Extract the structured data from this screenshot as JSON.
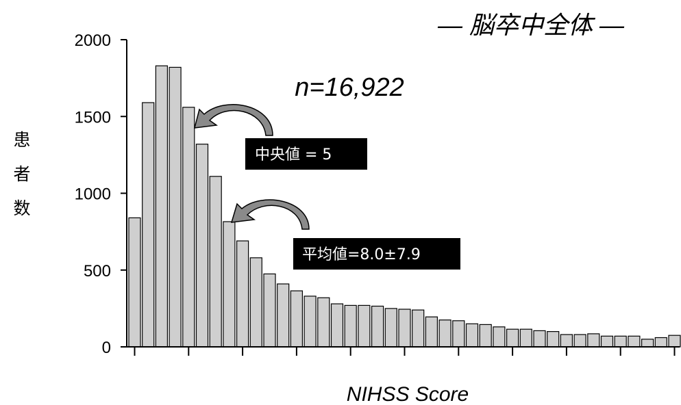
{
  "chart_data": {
    "type": "bar",
    "title": "― 脳卒中全体 ―",
    "n_label": "n=16,922",
    "xlabel": "NIHSS Score",
    "ylabel_chars": [
      "患",
      "者",
      "数"
    ],
    "ylim": [
      0,
      2000
    ],
    "yticks": [
      0,
      500,
      1000,
      1500,
      2000
    ],
    "grid": false,
    "legend": "none",
    "x": [
      0,
      1,
      2,
      3,
      4,
      5,
      6,
      7,
      8,
      9,
      10,
      11,
      12,
      13,
      14,
      15,
      16,
      17,
      18,
      19,
      20,
      21,
      22,
      23,
      24,
      25,
      26,
      27,
      28,
      29,
      30,
      31,
      32,
      33,
      34,
      35,
      36,
      37,
      38,
      39,
      40
    ],
    "values": [
      840,
      1590,
      1830,
      1820,
      1560,
      1320,
      1110,
      815,
      690,
      580,
      475,
      410,
      365,
      330,
      320,
      280,
      270,
      270,
      265,
      250,
      245,
      240,
      195,
      175,
      170,
      150,
      145,
      130,
      115,
      115,
      105,
      100,
      80,
      80,
      85,
      70,
      70,
      70,
      50,
      60,
      75
    ],
    "bar_color": "#cfcfcf",
    "annotations": [
      {
        "text": "中央値 = 5",
        "value": 5,
        "color": "#000000"
      },
      {
        "text": "平均値=8.0±7.9",
        "value": 8.0,
        "color": "#000000"
      }
    ]
  }
}
